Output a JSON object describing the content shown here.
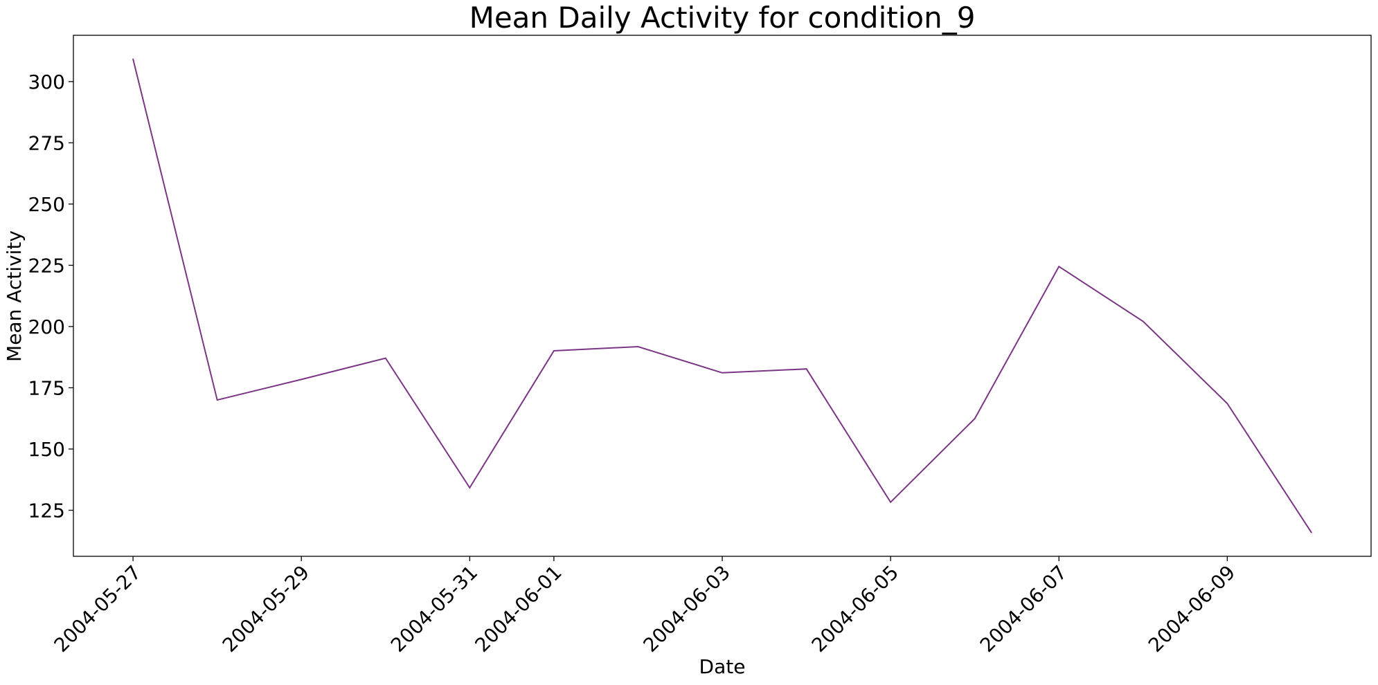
{
  "chart_data": {
    "type": "line",
    "title": "Mean Daily Activity for condition_9",
    "xlabel": "Date",
    "ylabel": "Mean Activity",
    "x": [
      "2004-05-27",
      "2004-05-28",
      "2004-05-29",
      "2004-05-30",
      "2004-05-31",
      "2004-06-01",
      "2004-06-02",
      "2004-06-03",
      "2004-06-04",
      "2004-06-05",
      "2004-06-06",
      "2004-06-07",
      "2004-06-08",
      "2004-06-09",
      "2004-06-10"
    ],
    "series": [
      {
        "values": [
          309.2,
          170.0,
          178.4,
          187.1,
          134.2,
          190.1,
          191.8,
          181.1,
          182.7,
          128.3,
          162.4,
          224.5,
          202.1,
          168.6,
          115.9
        ],
        "color": "#7b3585"
      }
    ],
    "xticks": [
      "2004-05-27",
      "2004-05-29",
      "2004-05-31",
      "2004-06-01",
      "2004-06-03",
      "2004-06-05",
      "2004-06-07",
      "2004-06-09"
    ],
    "yticks": [
      125,
      150,
      175,
      200,
      225,
      250,
      275,
      300
    ],
    "xlim": [
      "2004-05-26T07:00",
      "2004-06-10T17:00"
    ],
    "ylim": [
      106.2,
      318.9
    ],
    "grid": false
  }
}
